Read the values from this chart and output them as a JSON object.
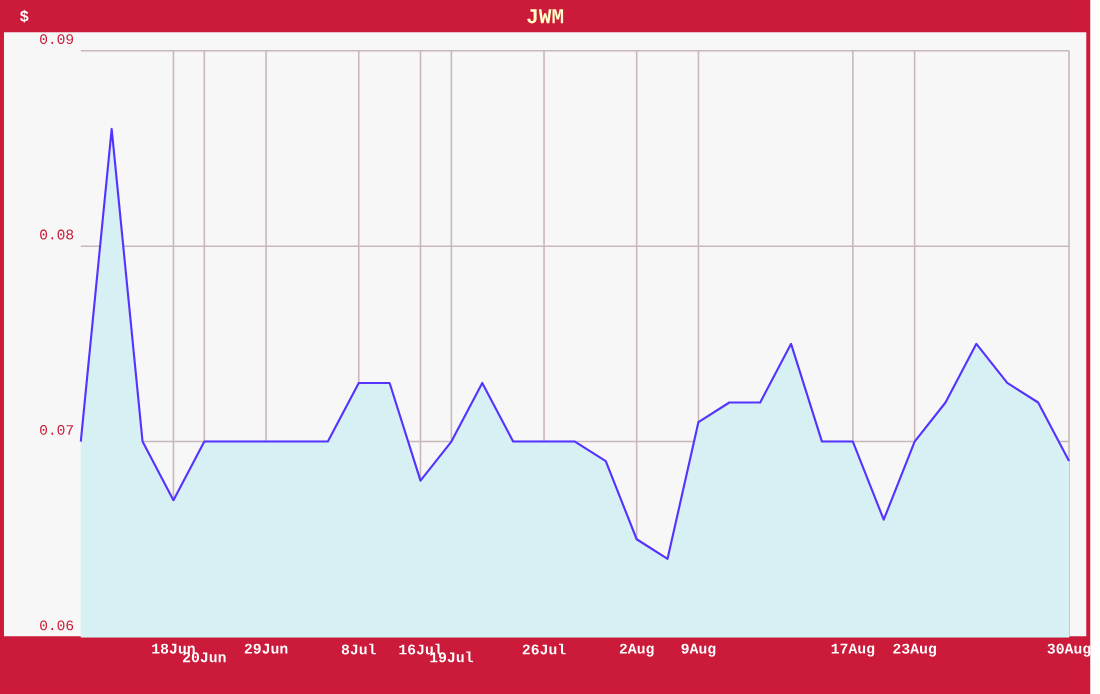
{
  "chart_data": {
    "type": "area",
    "title": "JWM",
    "ylabel": "$",
    "categories": [
      null,
      null,
      null,
      "18Jun",
      "20Jun",
      null,
      "29Jun",
      null,
      null,
      "8Jul",
      null,
      "16Jul",
      "19Jul",
      null,
      null,
      "26Jul",
      null,
      null,
      "2Aug",
      null,
      "9Aug",
      null,
      null,
      null,
      null,
      "17Aug",
      null,
      "23Aug",
      null,
      null,
      null,
      null,
      "30Aug"
    ],
    "values": [
      0.07,
      0.086,
      0.07,
      0.067,
      0.07,
      0.07,
      0.07,
      0.07,
      0.07,
      0.073,
      0.073,
      0.068,
      0.07,
      0.073,
      0.07,
      0.07,
      0.07,
      0.069,
      0.065,
      0.064,
      0.071,
      0.072,
      0.072,
      0.075,
      0.07,
      0.07,
      0.066,
      0.07,
      0.072,
      0.075,
      0.073,
      0.072,
      0.069
    ],
    "color": "#5533ff",
    "ylim": [
      0.06,
      0.09
    ],
    "yticks": [
      0.06,
      0.07,
      0.08,
      0.09
    ],
    "grid": true
  }
}
